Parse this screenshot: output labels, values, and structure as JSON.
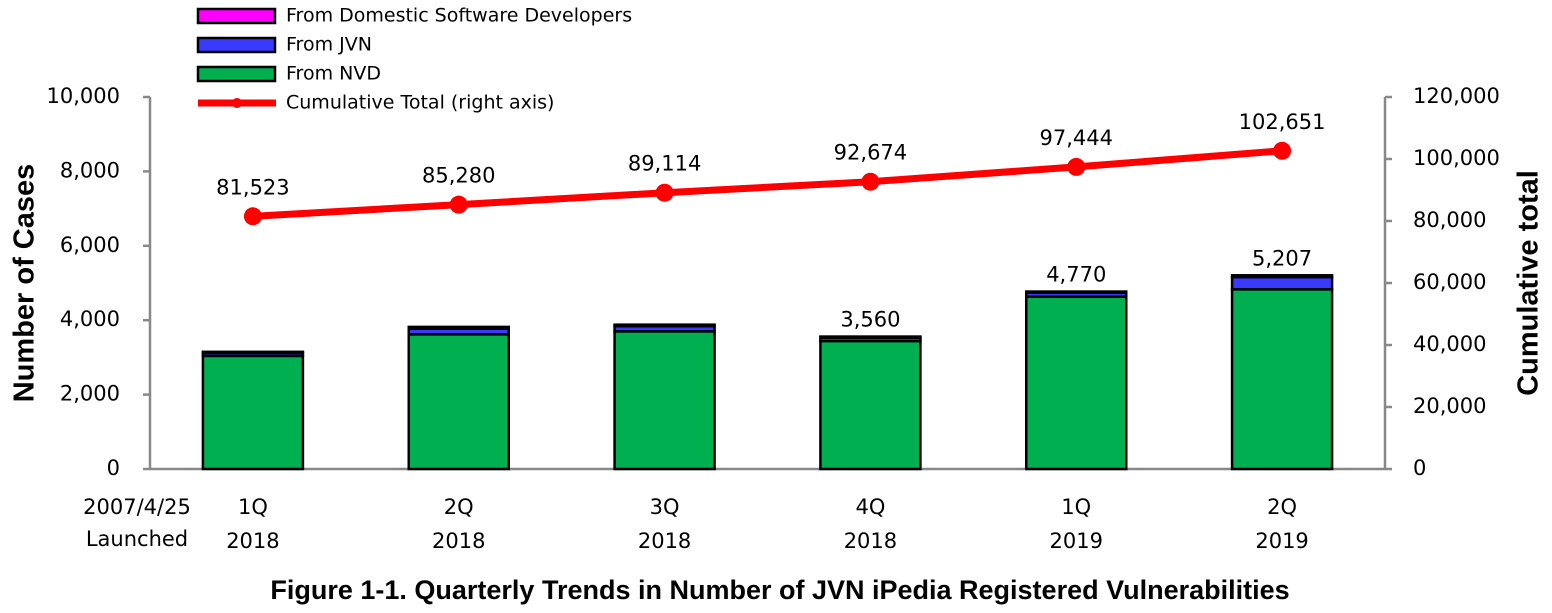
{
  "chart_data": {
    "type": "bar",
    "title": "Figure 1-1. Quarterly Trends in Number of JVN iPedia Registered Vulnerabilities",
    "y_label": "Number of Cases",
    "y2_label": "Cumulative total",
    "annotation": [
      "2007/4/25",
      "Launched"
    ],
    "categories": [
      [
        "1Q",
        "2018"
      ],
      [
        "2Q",
        "2018"
      ],
      [
        "3Q",
        "2018"
      ],
      [
        "4Q",
        "2018"
      ],
      [
        "1Q",
        "2019"
      ],
      [
        "2Q",
        "2019"
      ]
    ],
    "series": [
      {
        "name": "From NVD",
        "color": "#00b050",
        "values": [
          3040,
          3620,
          3700,
          3440,
          4630,
          4830
        ]
      },
      {
        "name": "From JVN",
        "color": "#3a3aff",
        "values": [
          80,
          150,
          140,
          90,
          110,
          330
        ]
      },
      {
        "name": "From Domestic Software Developers",
        "color": "#ff00ff",
        "values": [
          30,
          50,
          40,
          30,
          30,
          47
        ]
      },
      {
        "name": "Cumulative Total (right axis)",
        "color": "#ff0000",
        "type": "line",
        "axis": "y2",
        "values": [
          81523,
          85280,
          89114,
          92674,
          97444,
          102651
        ],
        "value_labels": [
          "81,523",
          "85,280",
          "89,114",
          "92,674",
          "97,444",
          "102,651"
        ]
      }
    ],
    "totals": [
      null,
      null,
      null,
      3560,
      4770,
      5207
    ],
    "total_labels": [
      null,
      null,
      null,
      "3,560",
      "4,770",
      "5,207"
    ],
    "ylim": [
      0,
      10000
    ],
    "yticks": [
      0,
      {
        "value": 2000,
        "label": "2,000"
      },
      {
        "value": 4000,
        "label": "4,000"
      },
      {
        "value": 6000,
        "label": "6,000"
      },
      {
        "value": 8000,
        "label": "8,000"
      },
      {
        "value": 10000,
        "label": "10,000"
      }
    ],
    "y2lim": [
      0,
      120000
    ],
    "y2ticks": [
      0,
      {
        "value": 20000,
        "label": "20,000"
      },
      {
        "value": 40000,
        "label": "40,000"
      },
      {
        "value": 60000,
        "label": "60,000"
      },
      {
        "value": 80000,
        "label": "80,000"
      },
      {
        "value": 100000,
        "label": "100,000"
      },
      {
        "value": 120000,
        "label": "120,000"
      }
    ],
    "grid": false
  }
}
